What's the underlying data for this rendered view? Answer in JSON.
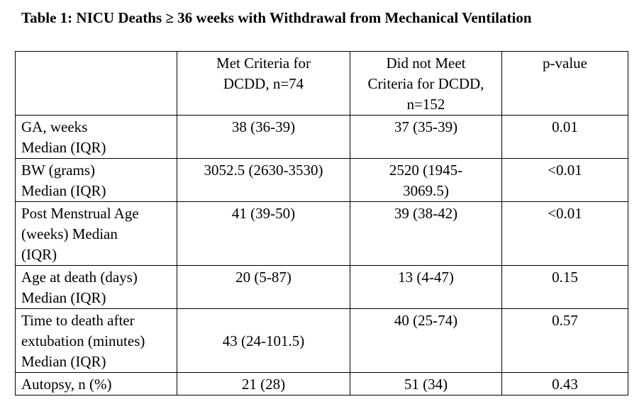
{
  "title": "Table 1: NICU Deaths ≥ 36 weeks with Withdrawal from Mechanical Ventilation",
  "header": {
    "col1": "",
    "col2": [
      "Met Criteria for",
      "DCDD, n=74"
    ],
    "col3": [
      "Did not Meet",
      "Criteria for DCDD,",
      "n=152"
    ],
    "col4": "p-value"
  },
  "rows": [
    {
      "label": [
        "GA, weeks",
        "Median (IQR)"
      ],
      "met": "38 (36-39)",
      "not_met": [
        "37 (35-39)"
      ],
      "p": "0.01"
    },
    {
      "label": [
        "BW (grams)",
        "Median (IQR)"
      ],
      "met": "3052.5 (2630-3530)",
      "not_met": [
        "2520 (1945-",
        "3069.5)"
      ],
      "p": "<0.01"
    },
    {
      "label": [
        "Post Menstrual Age",
        "(weeks) Median",
        "(IQR)"
      ],
      "met": "41 (39-50)",
      "not_met": [
        "39 (38-42)"
      ],
      "p": "<0.01"
    },
    {
      "label": [
        "Age at death (days)",
        "Median (IQR)"
      ],
      "met": "20 (5-87)",
      "not_met": [
        "13 (4-47)"
      ],
      "p": "0.15"
    },
    {
      "label": [
        "Time to death after",
        "extubation (minutes)",
        "Median (IQR)"
      ],
      "met": "43 (24-101.5)",
      "not_met": [
        "40 (25-74)"
      ],
      "p": "0.57"
    },
    {
      "label": [
        "Autopsy, n (%)"
      ],
      "met": "21 (28)",
      "not_met": [
        "51 (34)"
      ],
      "p": "0.43"
    }
  ]
}
